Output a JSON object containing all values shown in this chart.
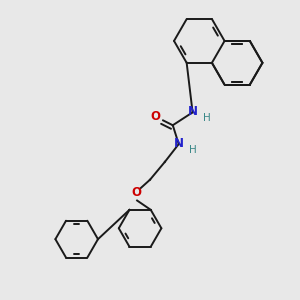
{
  "bg": "#e8e8e8",
  "bc": "#1a1a1a",
  "nc": "#2222cc",
  "oc": "#cc0000",
  "hc": "#3a8888",
  "lw": 1.4,
  "dbo": 0.032,
  "fig_w": 3.0,
  "fig_h": 3.0,
  "dpi": 100,
  "xlim": [
    0,
    3.0
  ],
  "ylim": [
    0,
    3.0
  ]
}
